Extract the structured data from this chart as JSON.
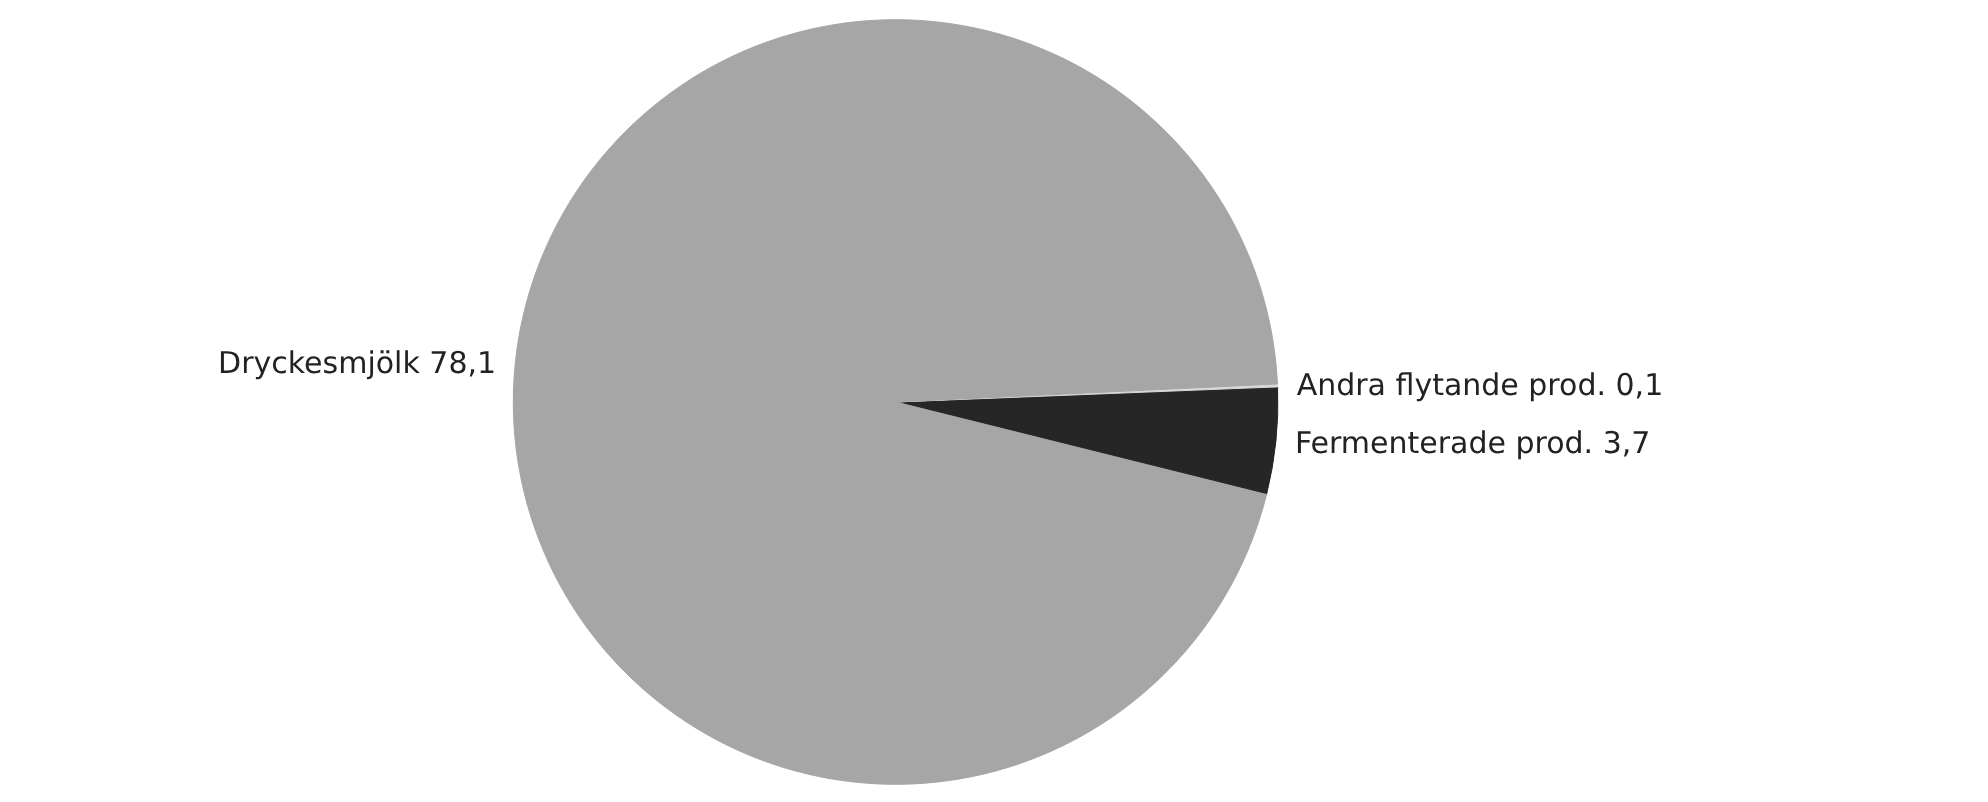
{
  "chart_data": {
    "type": "pie",
    "categories": [
      "Dryckesmjölk",
      "Andra flytande prod.",
      "Fermenterade prod."
    ],
    "values": [
      78.1,
      0.1,
      3.7
    ],
    "value_labels": [
      "78,1",
      "0,1",
      "3,7"
    ],
    "colors": [
      "#a6a6a6",
      "#d9d9d9",
      "#262626"
    ]
  }
}
